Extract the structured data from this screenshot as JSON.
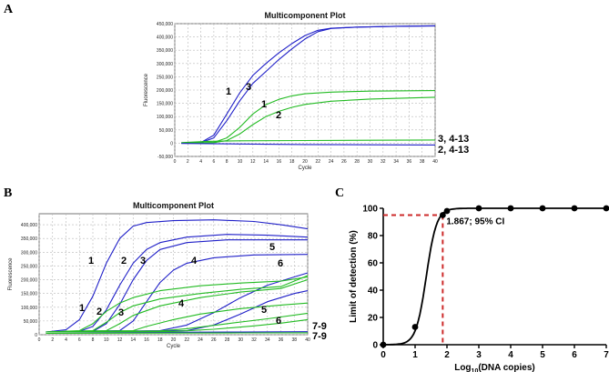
{
  "panels": {
    "A": "A",
    "B": "B",
    "C": "C"
  },
  "chart_data": [
    {
      "type": "line",
      "panel": "A",
      "title": "Multicomponent Plot",
      "xlabel": "Cycle",
      "ylabel": "Fluorescence",
      "xlim": [
        0,
        40
      ],
      "ylim": [
        -50000,
        450000
      ],
      "xticks": [
        0,
        2,
        4,
        6,
        8,
        10,
        12,
        14,
        16,
        18,
        20,
        22,
        24,
        26,
        28,
        30,
        32,
        34,
        36,
        38,
        40
      ],
      "yticks": [
        -50000,
        0,
        50000,
        100000,
        150000,
        200000,
        250000,
        300000,
        350000,
        400000,
        450000
      ],
      "ytick_labels": [
        "-50,000",
        "0",
        "50,000",
        "100,000",
        "150,000",
        "200,000",
        "250,000",
        "300,000",
        "350,000",
        "400,000",
        "450,000"
      ],
      "series": [
        {
          "name": "1",
          "color": "#1f1fc8",
          "points": [
            [
              1,
              0
            ],
            [
              4,
              2000
            ],
            [
              6,
              20000
            ],
            [
              8,
              85000
            ],
            [
              10,
              160000
            ],
            [
              12,
              225000
            ],
            [
              14,
              270000
            ],
            [
              16,
              315000
            ],
            [
              18,
              355000
            ],
            [
              20,
              392000
            ],
            [
              22,
              420000
            ],
            [
              24,
              432000
            ],
            [
              28,
              437000
            ],
            [
              34,
              440000
            ],
            [
              40,
              442000
            ]
          ]
        },
        {
          "name": "3",
          "color": "#1f1fc8",
          "points": [
            [
              1,
              0
            ],
            [
              4,
              2500
            ],
            [
              6,
              30000
            ],
            [
              8,
              110000
            ],
            [
              10,
              190000
            ],
            [
              12,
              255000
            ],
            [
              14,
              300000
            ],
            [
              16,
              340000
            ],
            [
              18,
              375000
            ],
            [
              20,
              405000
            ],
            [
              22,
              425000
            ],
            [
              24,
              433000
            ],
            [
              28,
              437000
            ],
            [
              34,
              440000
            ],
            [
              40,
              441000
            ]
          ]
        },
        {
          "name": "1",
          "color": "#22bb22",
          "points": [
            [
              1,
              0
            ],
            [
              6,
              3000
            ],
            [
              8,
              20000
            ],
            [
              10,
              60000
            ],
            [
              12,
              110000
            ],
            [
              14,
              145000
            ],
            [
              16,
              165000
            ],
            [
              18,
              178000
            ],
            [
              20,
              186000
            ],
            [
              24,
              192000
            ],
            [
              30,
              196000
            ],
            [
              40,
              198000
            ]
          ]
        },
        {
          "name": "2",
          "color": "#22bb22",
          "points": [
            [
              1,
              0
            ],
            [
              6,
              2000
            ],
            [
              8,
              10000
            ],
            [
              10,
              35000
            ],
            [
              12,
              70000
            ],
            [
              14,
              100000
            ],
            [
              16,
              120000
            ],
            [
              18,
              135000
            ],
            [
              20,
              146000
            ],
            [
              24,
              158000
            ],
            [
              30,
              166000
            ],
            [
              40,
              173000
            ]
          ]
        },
        {
          "name": "3, 4-13",
          "color": "#22bb22",
          "points": [
            [
              1,
              2000
            ],
            [
              5,
              7000
            ],
            [
              10,
              9000
            ],
            [
              20,
              10000
            ],
            [
              30,
              11000
            ],
            [
              40,
              12000
            ]
          ]
        },
        {
          "name": "2, 4-13",
          "color": "#1f1fc8",
          "points": [
            [
              1,
              -1000
            ],
            [
              10,
              -3000
            ],
            [
              20,
              -5000
            ],
            [
              30,
              -6000
            ],
            [
              40,
              -7000
            ]
          ]
        }
      ],
      "annotations": [
        "1",
        "3",
        "1",
        "2",
        "3, 4-13",
        "2, 4-13"
      ]
    },
    {
      "type": "line",
      "panel": "B",
      "title": "Multicomponent Plot",
      "xlabel": "Cycle",
      "ylabel": "Fluorescence",
      "xlim": [
        0,
        40
      ],
      "ylim": [
        0,
        440000
      ],
      "xticks": [
        0,
        2,
        4,
        6,
        8,
        10,
        12,
        14,
        16,
        18,
        20,
        22,
        24,
        26,
        28,
        30,
        32,
        34,
        36,
        38,
        40
      ],
      "yticks": [
        0,
        50000,
        100000,
        150000,
        200000,
        250000,
        300000,
        350000,
        400000
      ],
      "ytick_labels": [
        "0",
        "50,000",
        "100,000",
        "150,000",
        "200,000",
        "250,000",
        "300,000",
        "350,000",
        "400,000"
      ],
      "series": [
        {
          "name": "1",
          "color": "#1f1fc8",
          "points": [
            [
              1,
              10000
            ],
            [
              4,
              18000
            ],
            [
              6,
              55000
            ],
            [
              8,
              140000
            ],
            [
              10,
              260000
            ],
            [
              12,
              350000
            ],
            [
              14,
              395000
            ],
            [
              16,
              408000
            ],
            [
              20,
              415000
            ],
            [
              26,
              418000
            ],
            [
              32,
              412000
            ],
            [
              36,
              400000
            ],
            [
              40,
              385000
            ]
          ]
        },
        {
          "name": "2",
          "color": "#1f1fc8",
          "points": [
            [
              1,
              10000
            ],
            [
              6,
              12000
            ],
            [
              8,
              30000
            ],
            [
              10,
              90000
            ],
            [
              12,
              180000
            ],
            [
              14,
              260000
            ],
            [
              16,
              310000
            ],
            [
              18,
              335000
            ],
            [
              22,
              355000
            ],
            [
              28,
              365000
            ],
            [
              34,
              362000
            ],
            [
              40,
              355000
            ]
          ]
        },
        {
          "name": "3",
          "color": "#1f1fc8",
          "points": [
            [
              1,
              10000
            ],
            [
              8,
              12000
            ],
            [
              10,
              40000
            ],
            [
              12,
              110000
            ],
            [
              14,
              200000
            ],
            [
              16,
              270000
            ],
            [
              18,
              310000
            ],
            [
              22,
              335000
            ],
            [
              28,
              345000
            ],
            [
              34,
              345000
            ],
            [
              40,
              345000
            ]
          ]
        },
        {
          "name": "4",
          "color": "#1f1fc8",
          "points": [
            [
              1,
              10000
            ],
            [
              12,
              15000
            ],
            [
              14,
              50000
            ],
            [
              16,
              120000
            ],
            [
              18,
              190000
            ],
            [
              20,
              235000
            ],
            [
              22,
              260000
            ],
            [
              26,
              280000
            ],
            [
              32,
              290000
            ],
            [
              40,
              292000
            ]
          ]
        },
        {
          "name": "5",
          "color": "#1f1fc8",
          "points": [
            [
              1,
              10000
            ],
            [
              18,
              15000
            ],
            [
              22,
              35000
            ],
            [
              26,
              80000
            ],
            [
              30,
              135000
            ],
            [
              34,
              180000
            ],
            [
              38,
              210000
            ],
            [
              40,
              225000
            ]
          ]
        },
        {
          "name": "6",
          "color": "#1f1fc8",
          "points": [
            [
              1,
              10000
            ],
            [
              22,
              15000
            ],
            [
              26,
              35000
            ],
            [
              30,
              75000
            ],
            [
              34,
              120000
            ],
            [
              38,
              150000
            ],
            [
              40,
              160000
            ]
          ]
        },
        {
          "name": "7-9",
          "color": "#1f1fc8",
          "points": [
            [
              1,
              10000
            ],
            [
              20,
              9000
            ],
            [
              30,
              10000
            ],
            [
              40,
              11000
            ]
          ]
        },
        {
          "name": "1",
          "color": "#22bb22",
          "points": [
            [
              1,
              10000
            ],
            [
              6,
              15000
            ],
            [
              8,
              40000
            ],
            [
              10,
              85000
            ],
            [
              12,
              115000
            ],
            [
              14,
              135000
            ],
            [
              18,
              160000
            ],
            [
              24,
              178000
            ],
            [
              30,
              188000
            ],
            [
              36,
              195000
            ],
            [
              40,
              210000
            ]
          ]
        },
        {
          "name": "2",
          "color": "#22bb22",
          "points": [
            [
              1,
              10000
            ],
            [
              8,
              15000
            ],
            [
              10,
              45000
            ],
            [
              12,
              80000
            ],
            [
              14,
              105000
            ],
            [
              18,
              130000
            ],
            [
              24,
              150000
            ],
            [
              30,
              165000
            ],
            [
              36,
              175000
            ],
            [
              40,
              215000
            ]
          ]
        },
        {
          "name": "3",
          "color": "#22bb22",
          "points": [
            [
              1,
              10000
            ],
            [
              10,
              15000
            ],
            [
              12,
              40000
            ],
            [
              14,
              70000
            ],
            [
              18,
              105000
            ],
            [
              24,
              135000
            ],
            [
              30,
              155000
            ],
            [
              36,
              168000
            ],
            [
              40,
              200000
            ]
          ]
        },
        {
          "name": "4",
          "color": "#22bb22",
          "points": [
            [
              1,
              10000
            ],
            [
              14,
              15000
            ],
            [
              16,
              30000
            ],
            [
              20,
              55000
            ],
            [
              24,
              75000
            ],
            [
              30,
              95000
            ],
            [
              36,
              108000
            ],
            [
              40,
              115000
            ]
          ]
        },
        {
          "name": "5",
          "color": "#22bb22",
          "points": [
            [
              1,
              10000
            ],
            [
              18,
              14000
            ],
            [
              22,
              22000
            ],
            [
              28,
              40000
            ],
            [
              34,
              58000
            ],
            [
              40,
              78000
            ]
          ]
        },
        {
          "name": "6",
          "color": "#22bb22",
          "points": [
            [
              1,
              10000
            ],
            [
              20,
              12000
            ],
            [
              26,
              20000
            ],
            [
              32,
              32000
            ],
            [
              36,
              42000
            ],
            [
              40,
              55000
            ]
          ]
        },
        {
          "name": "7-9",
          "color": "#22bb22",
          "points": [
            [
              1,
              5000
            ],
            [
              20,
              6000
            ],
            [
              30,
              6500
            ],
            [
              40,
              7000
            ]
          ]
        }
      ],
      "annotations": [
        "1",
        "2",
        "3",
        "4",
        "5",
        "6",
        "1",
        "2",
        "3",
        "4",
        "5",
        "6",
        "7-9",
        "7-9"
      ]
    },
    {
      "type": "scatter",
      "panel": "C",
      "title": "",
      "xlabel": "Log10(DNA copies)",
      "xlabel_main": "Log",
      "xlabel_sub": "10",
      "xlabel_tail": "(DNA copies)",
      "ylabel": "Limit of detection (%)",
      "xlim": [
        0,
        7
      ],
      "ylim": [
        0,
        100
      ],
      "xticks": [
        0,
        1,
        2,
        3,
        4,
        5,
        6,
        7
      ],
      "yticks": [
        0,
        20,
        40,
        60,
        80,
        100
      ],
      "x": [
        0,
        1,
        1.867,
        2,
        3,
        4,
        5,
        6,
        7
      ],
      "y": [
        0,
        13,
        95,
        98,
        100,
        100,
        100,
        100,
        100
      ],
      "fit": {
        "type": "sigmoid",
        "midpoint": 1.35,
        "slope": 6.2
      },
      "lod_x": 1.867,
      "lod_y": 95,
      "annotation": "1.867; 95% CI",
      "marker_color": "#000000",
      "ref_line_color": "#cc2a2a"
    }
  ]
}
